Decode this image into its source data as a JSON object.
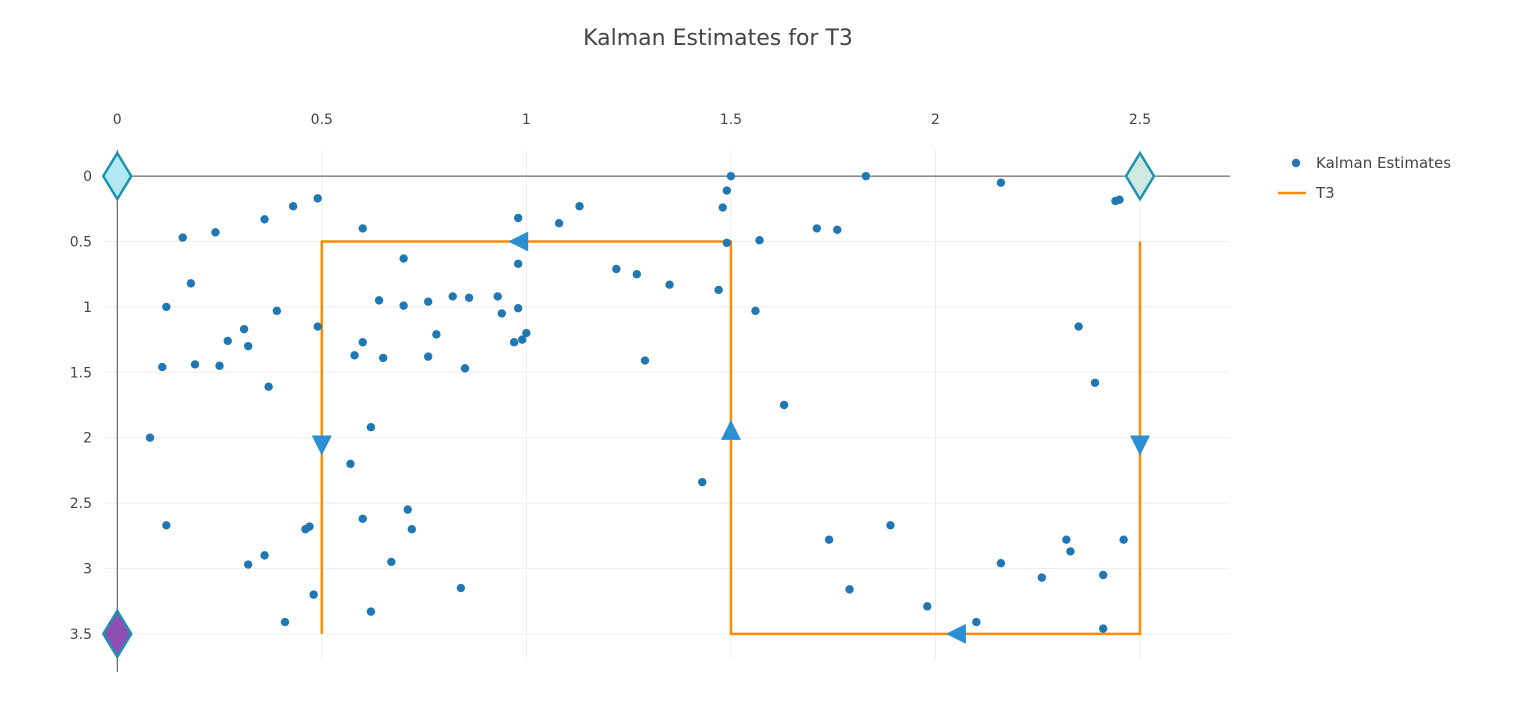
{
  "chart_data": {
    "type": "scatter",
    "title": "Kalman Estimates for T3",
    "x_axis": {
      "range": [
        -0.03,
        2.72
      ],
      "side": "top",
      "ticks": [
        "0",
        "0.5",
        "1",
        "1.5",
        "2",
        "2.5"
      ],
      "tick_values": [
        0,
        0.5,
        1,
        1.5,
        2,
        2.5
      ]
    },
    "y_axis": {
      "range": [
        -0.2,
        3.7
      ],
      "reversed": true,
      "ticks": [
        "0",
        "0.5",
        "1",
        "1.5",
        "2",
        "2.5",
        "3",
        "3.5"
      ],
      "tick_values": [
        0,
        0.5,
        1,
        1.5,
        2,
        2.5,
        3,
        3.5
      ]
    },
    "grid": true,
    "legend": {
      "placement": "top-right"
    },
    "series": [
      {
        "name": "Kalman Estimates",
        "mode": "markers",
        "color": "#1f77b4",
        "points": [
          [
            0.08,
            2.0
          ],
          [
            0.11,
            1.46
          ],
          [
            0.12,
            1.0
          ],
          [
            0.12,
            2.67
          ],
          [
            0.16,
            0.47
          ],
          [
            0.18,
            0.82
          ],
          [
            0.19,
            1.44
          ],
          [
            0.24,
            0.43
          ],
          [
            0.25,
            1.45
          ],
          [
            0.27,
            1.26
          ],
          [
            0.31,
            1.17
          ],
          [
            0.32,
            1.3
          ],
          [
            0.32,
            2.97
          ],
          [
            0.36,
            0.33
          ],
          [
            0.36,
            2.9
          ],
          [
            0.37,
            1.61
          ],
          [
            0.39,
            1.03
          ],
          [
            0.41,
            3.41
          ],
          [
            0.43,
            0.23
          ],
          [
            0.46,
            2.7
          ],
          [
            0.47,
            2.68
          ],
          [
            0.48,
            3.2
          ],
          [
            0.49,
            0.17
          ],
          [
            0.49,
            1.15
          ],
          [
            0.57,
            2.2
          ],
          [
            0.58,
            1.37
          ],
          [
            0.6,
            0.4
          ],
          [
            0.6,
            1.27
          ],
          [
            0.6,
            2.62
          ],
          [
            0.62,
            1.92
          ],
          [
            0.62,
            3.33
          ],
          [
            0.64,
            0.95
          ],
          [
            0.65,
            1.39
          ],
          [
            0.67,
            2.95
          ],
          [
            0.7,
            0.63
          ],
          [
            0.7,
            0.99
          ],
          [
            0.71,
            2.55
          ],
          [
            0.72,
            2.7
          ],
          [
            0.76,
            0.96
          ],
          [
            0.76,
            1.38
          ],
          [
            0.78,
            1.21
          ],
          [
            0.82,
            0.92
          ],
          [
            0.84,
            3.15
          ],
          [
            0.85,
            1.47
          ],
          [
            0.86,
            0.93
          ],
          [
            0.93,
            0.92
          ],
          [
            0.94,
            1.05
          ],
          [
            0.97,
            1.27
          ],
          [
            0.98,
            0.32
          ],
          [
            0.98,
            0.67
          ],
          [
            0.98,
            1.01
          ],
          [
            0.99,
            1.25
          ],
          [
            1.0,
            1.2
          ],
          [
            1.08,
            0.36
          ],
          [
            1.13,
            0.23
          ],
          [
            1.22,
            0.71
          ],
          [
            1.27,
            0.75
          ],
          [
            1.29,
            1.41
          ],
          [
            1.35,
            0.83
          ],
          [
            1.43,
            2.34
          ],
          [
            1.47,
            0.87
          ],
          [
            1.48,
            0.24
          ],
          [
            1.49,
            0.51
          ],
          [
            1.49,
            0.11
          ],
          [
            1.5,
            0.0
          ],
          [
            1.56,
            1.03
          ],
          [
            1.57,
            0.49
          ],
          [
            1.63,
            1.75
          ],
          [
            1.71,
            0.4
          ],
          [
            1.74,
            2.78
          ],
          [
            1.76,
            0.41
          ],
          [
            1.79,
            3.16
          ],
          [
            1.83,
            0.0
          ],
          [
            1.89,
            2.67
          ],
          [
            1.98,
            3.29
          ],
          [
            2.1,
            3.41
          ],
          [
            2.16,
            0.05
          ],
          [
            2.16,
            2.96
          ],
          [
            2.26,
            3.07
          ],
          [
            2.32,
            2.78
          ],
          [
            2.33,
            2.87
          ],
          [
            2.35,
            1.15
          ],
          [
            2.39,
            1.58
          ],
          [
            2.41,
            3.05
          ],
          [
            2.41,
            3.46
          ],
          [
            2.44,
            0.19
          ],
          [
            2.45,
            0.18
          ],
          [
            2.46,
            2.78
          ]
        ]
      },
      {
        "name": "T3",
        "mode": "lines",
        "color": "#ff8c00",
        "x": [
          0.5,
          0.5,
          1.5,
          1.5,
          2.5,
          2.5
        ],
        "y": [
          3.5,
          0.5,
          0.5,
          3.5,
          3.5,
          0.5
        ]
      }
    ],
    "direction_arrows": [
      {
        "x": 0.5,
        "y": 2.06,
        "direction": "down"
      },
      {
        "x": 0.98,
        "y": 0.5,
        "direction": "left"
      },
      {
        "x": 1.5,
        "y": 1.94,
        "direction": "up"
      },
      {
        "x": 2.05,
        "y": 3.5,
        "direction": "left"
      },
      {
        "x": 2.5,
        "y": 2.06,
        "direction": "down"
      }
    ],
    "corner_markers": [
      {
        "x": 0,
        "y": 0,
        "color": "#b3e8f2",
        "border": "#1d91b0"
      },
      {
        "x": 2.5,
        "y": 0,
        "color": "#cfe8e0",
        "border": "#1d91b0"
      },
      {
        "x": 0,
        "y": 3.5,
        "color": "#8e4fb4",
        "border": "#1d91b0"
      }
    ],
    "arrow_color": "#2b8fd4"
  }
}
